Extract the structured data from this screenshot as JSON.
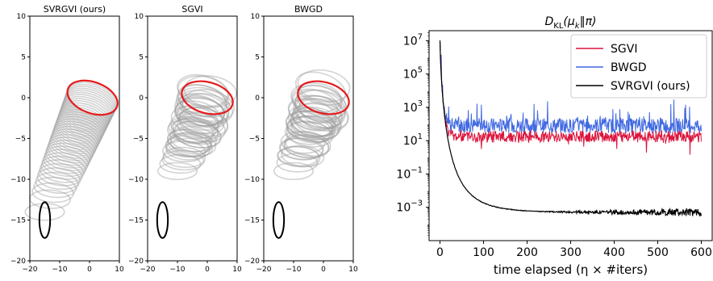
{
  "chart_data": [
    {
      "type": "scatter",
      "title": "SVRGVI (ours)",
      "xlim": [
        -20,
        10
      ],
      "ylim": [
        -20,
        10
      ],
      "xticks": [
        "−20",
        "−10",
        "0",
        "10"
      ],
      "yticks": [
        "10",
        "5",
        "0",
        "−5",
        "−10",
        "−15",
        "−20"
      ],
      "initial_ellipse": {
        "center": [
          -15,
          -15
        ],
        "rx": 1.8,
        "ry": 2.2
      },
      "target_ellipse": {
        "center": [
          1,
          0
        ],
        "rx": 5.2,
        "ry": 3.2,
        "angle_deg": -70
      },
      "trajectory": {
        "start": [
          -15,
          -14
        ],
        "end": [
          1,
          0
        ],
        "steps": 40
      },
      "iterate_colors": {
        "iterates": "#9e9e9e",
        "target": "#e41a1c",
        "initial": "#000000"
      }
    },
    {
      "type": "scatter",
      "title": "SGVI",
      "xlim": [
        -20,
        10
      ],
      "ylim": [
        -20,
        10
      ],
      "xticks": [
        "−20",
        "−10",
        "0",
        "10"
      ],
      "yticks": [
        "10",
        "5",
        "0",
        "−5",
        "−10",
        "−15",
        "−20"
      ],
      "initial_ellipse": {
        "center": [
          -15,
          -15
        ],
        "rx": 1.8,
        "ry": 2.2
      },
      "target_ellipse": {
        "center": [
          0,
          0
        ],
        "rx": 5.2,
        "ry": 3.2,
        "angle_deg": -75
      },
      "trajectory": {
        "start": [
          -10,
          -9
        ],
        "end": [
          0,
          0
        ],
        "steps": 40
      }
    },
    {
      "type": "scatter",
      "title": "BWGD",
      "xlim": [
        -20,
        10
      ],
      "ylim": [
        -20,
        10
      ],
      "xticks": [
        "−20",
        "−10",
        "0",
        "10"
      ],
      "yticks": [
        "10",
        "5",
        "0",
        "−5",
        "−10",
        "−15",
        "−20"
      ],
      "initial_ellipse": {
        "center": [
          -15,
          -15
        ],
        "rx": 1.8,
        "ry": 2.2
      },
      "target_ellipse": {
        "center": [
          0,
          0
        ],
        "rx": 5.2,
        "ry": 3.2,
        "angle_deg": -75
      },
      "trajectory": {
        "start": [
          -10,
          -9
        ],
        "end": [
          0,
          0
        ],
        "steps": 40
      }
    },
    {
      "type": "line",
      "title": "D_KL(μ_k‖π)",
      "title_parts": {
        "main": "D",
        "sub1": "KL",
        "open": "(μ",
        "sub2": "k",
        "close": "‖π)"
      },
      "xlabel": "time elapsed (η × #iters)",
      "xlim": [
        -25,
        625
      ],
      "ylim_log10": [
        -5,
        7.6
      ],
      "y_scale": "log",
      "xticks": [
        "0",
        "100",
        "200",
        "300",
        "400",
        "500",
        "600"
      ],
      "yticks": [
        {
          "base": "10",
          "exp": "7",
          "value_log10": 7
        },
        {
          "base": "10",
          "exp": "5",
          "value_log10": 5
        },
        {
          "base": "10",
          "exp": "3",
          "value_log10": 3
        },
        {
          "base": "10",
          "exp": "1",
          "value_log10": 1
        },
        {
          "base": "10",
          "exp": "−1",
          "value_log10": -1
        },
        {
          "base": "10",
          "exp": "−3",
          "value_log10": -3
        }
      ],
      "legend_position": "top-right",
      "series": [
        {
          "name": "SGVI",
          "color": "#dc143c",
          "plateau_log10": 1.25,
          "noise": 0.35,
          "decay_from_log10": 7.0
        },
        {
          "name": "BWGD",
          "color": "#4169e1",
          "plateau_log10": 1.9,
          "noise": 0.45,
          "decay_from_log10": 7.0
        },
        {
          "name": "SVRGVI (ours)",
          "color": "#000000",
          "start_log10": 7.0,
          "end_log10": -3.3,
          "noise_tail": 0.25
        }
      ],
      "x_range": [
        0,
        600
      ]
    }
  ]
}
